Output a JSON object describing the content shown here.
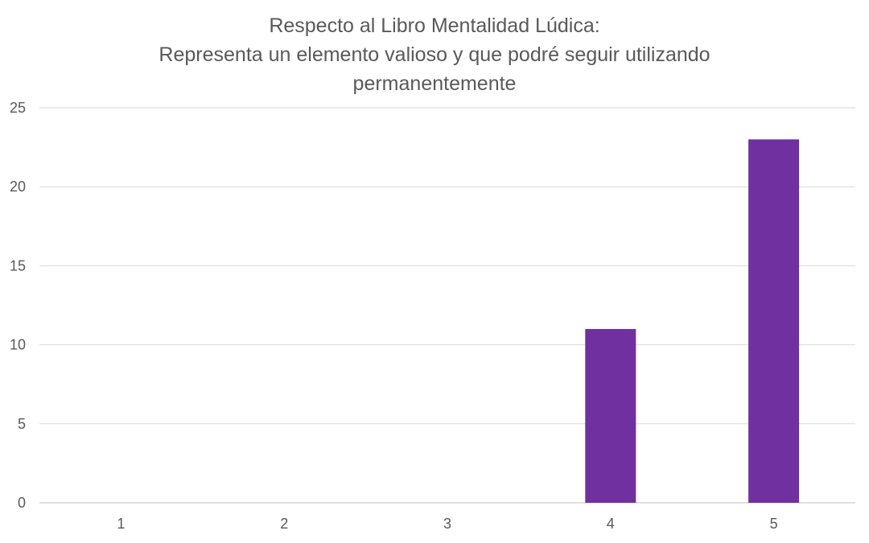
{
  "chart_data": {
    "type": "bar",
    "title_lines": [
      "Respecto al Libro Mentalidad Lúdica:",
      "Representa un elemento valioso y que podré seguir utilizando",
      "permanentemente"
    ],
    "categories": [
      "1",
      "2",
      "3",
      "4",
      "5"
    ],
    "values": [
      0,
      0,
      0,
      11,
      23
    ],
    "ylim": [
      0,
      25
    ],
    "yticks": [
      "0",
      "5",
      "10",
      "15",
      "20",
      "25"
    ],
    "grid": true,
    "legend": "none",
    "xlabel": "",
    "ylabel": "",
    "colors": {
      "bar": "#7030A0",
      "grid": "#d9d9d9",
      "text": "#595959"
    }
  }
}
